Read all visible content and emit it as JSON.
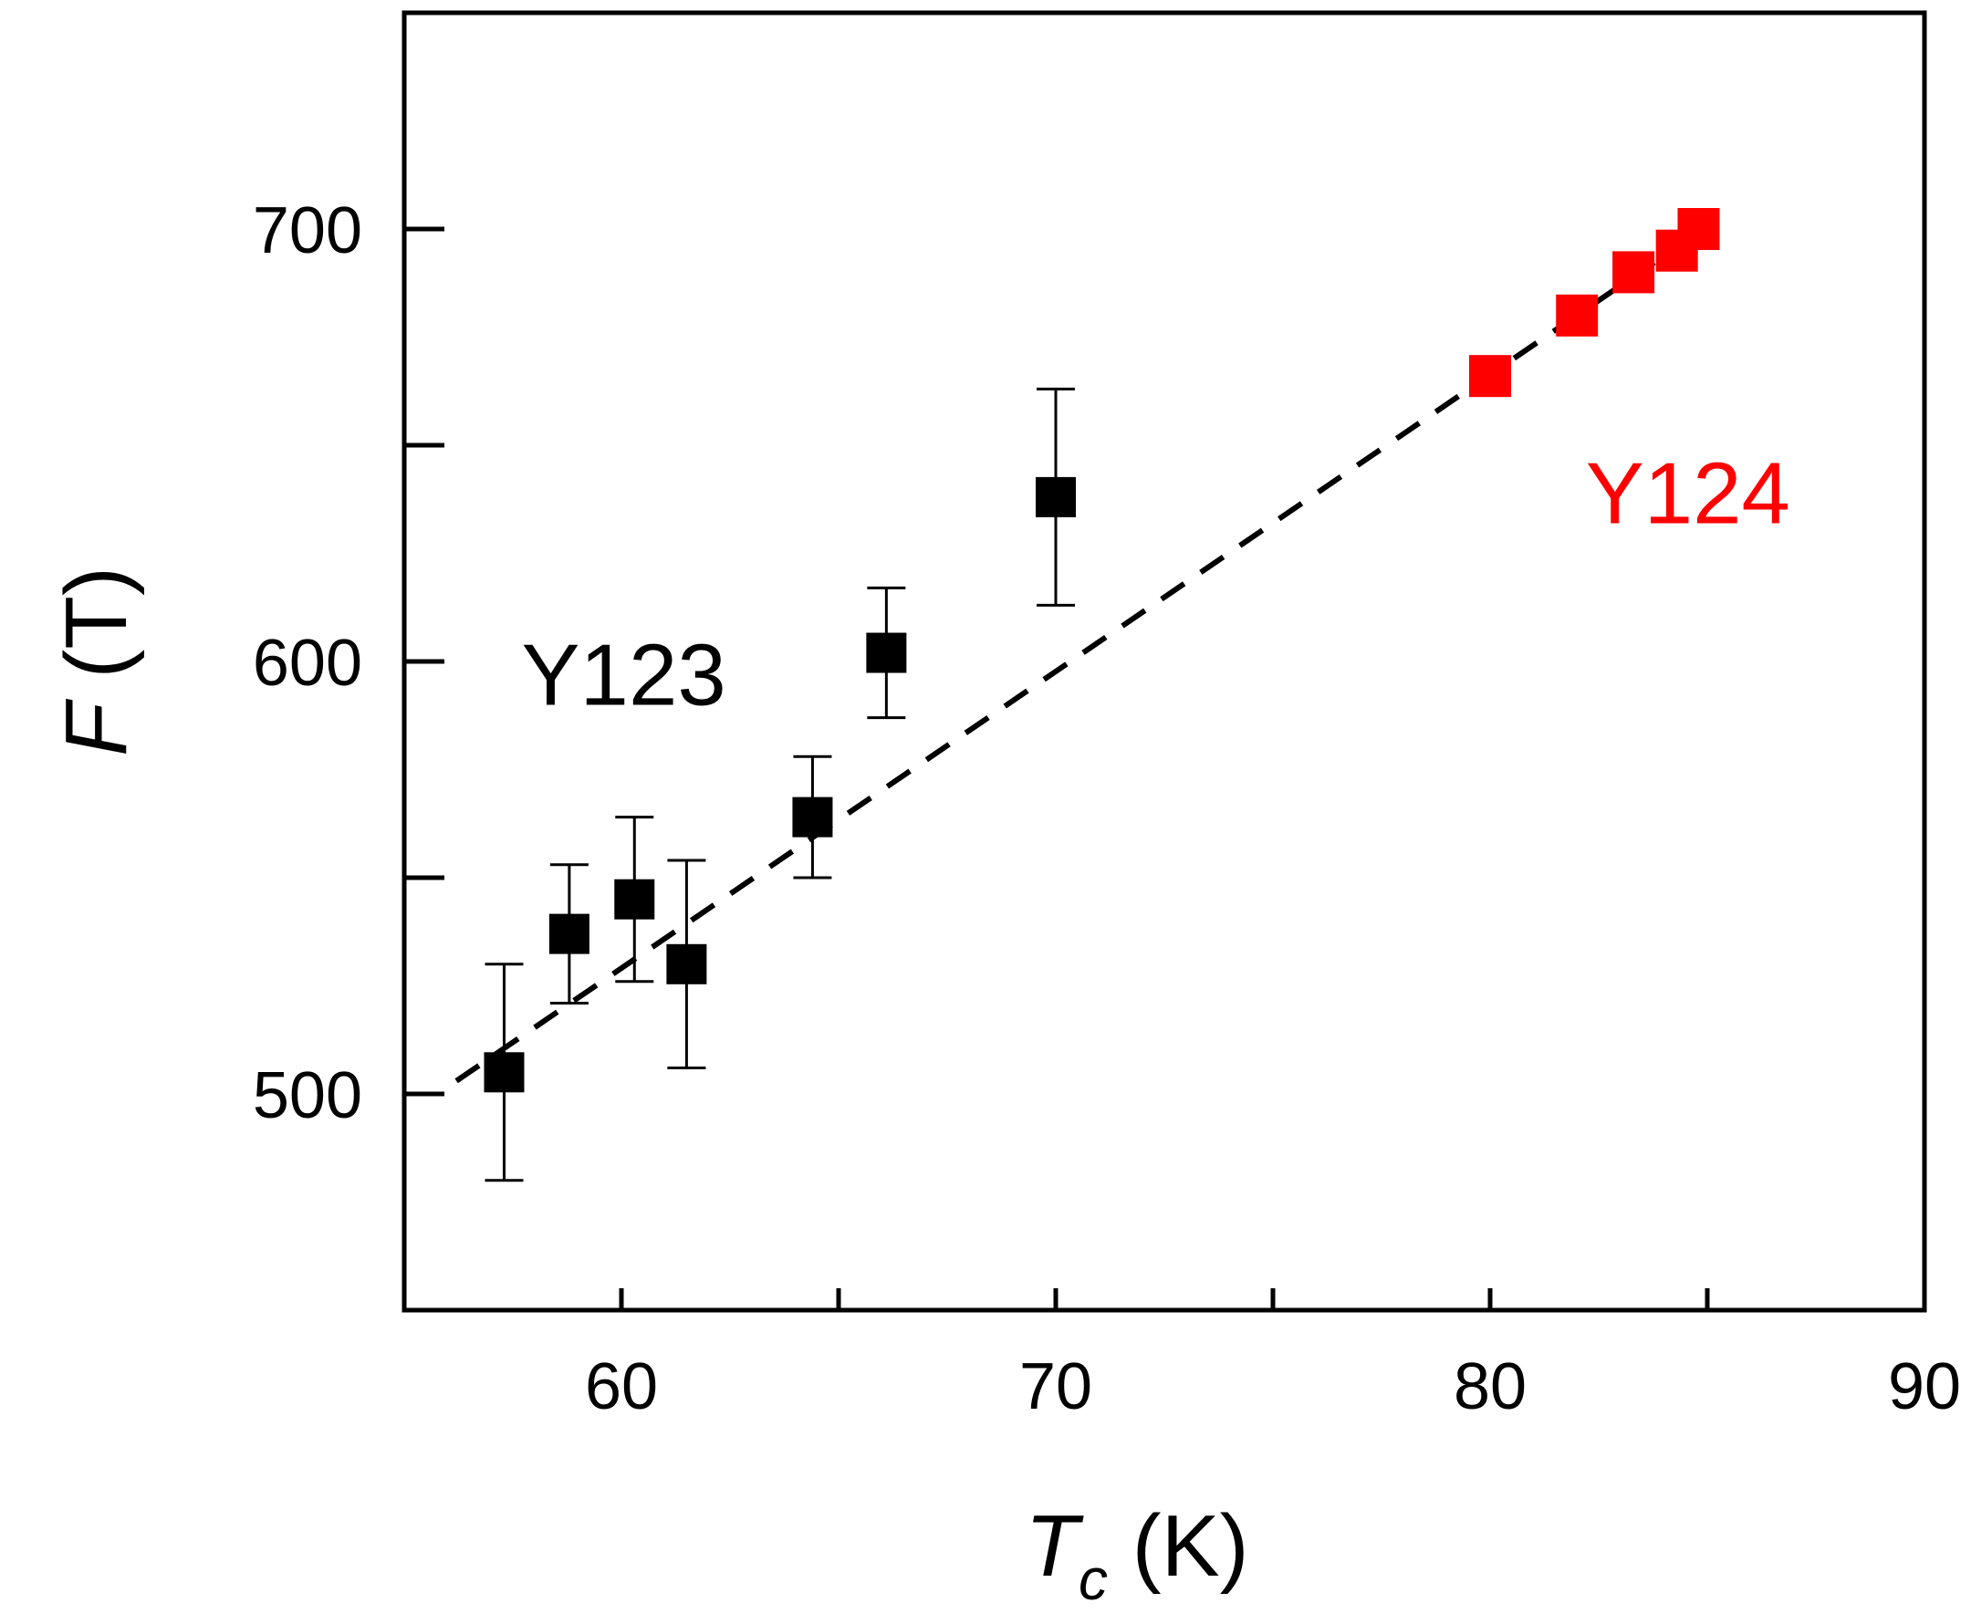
{
  "chart_data": {
    "type": "scatter",
    "title": "",
    "xlabel": {
      "symbol": "T",
      "subscript": "c",
      "unit": " (K)"
    },
    "ylabel": {
      "symbol": "F",
      "unit": " (T)"
    },
    "xlim": [
      55,
      90
    ],
    "ylim": [
      450,
      750
    ],
    "x_ticks": [
      60,
      65,
      70,
      75,
      80,
      85,
      90
    ],
    "x_tick_labels": [
      {
        "value": 60,
        "label": "60"
      },
      {
        "value": 70,
        "label": "70"
      },
      {
        "value": 80,
        "label": "80"
      },
      {
        "value": 90,
        "label": "90"
      }
    ],
    "y_ticks": [
      500,
      550,
      600,
      650,
      700
    ],
    "y_tick_labels": [
      {
        "value": 500,
        "label": "500"
      },
      {
        "value": 600,
        "label": "600"
      },
      {
        "value": 700,
        "label": "700"
      }
    ],
    "grid": false,
    "series": [
      {
        "name": "Y123",
        "color": "#000000",
        "marker": "square",
        "points": [
          {
            "x": 57.3,
            "y": 505,
            "err": 25
          },
          {
            "x": 58.8,
            "y": 537,
            "err": 16
          },
          {
            "x": 60.3,
            "y": 545,
            "err": 19
          },
          {
            "x": 61.5,
            "y": 530,
            "err": 24
          },
          {
            "x": 64.4,
            "y": 564,
            "err": 14
          },
          {
            "x": 66.1,
            "y": 602,
            "err": 15
          },
          {
            "x": 70.0,
            "y": 638,
            "err": 25
          }
        ]
      },
      {
        "name": "Y124",
        "color": "#ff0000",
        "marker": "square",
        "points": [
          {
            "x": 80.0,
            "y": 666
          },
          {
            "x": 82.0,
            "y": 680
          },
          {
            "x": 83.3,
            "y": 690
          },
          {
            "x": 84.3,
            "y": 695
          },
          {
            "x": 84.8,
            "y": 700
          }
        ]
      }
    ],
    "fit_line": {
      "style": "dashed",
      "color": "#000000",
      "from": {
        "x": 56.2,
        "y": 503
      },
      "to": {
        "x": 85.2,
        "y": 702
      }
    },
    "annotations": [
      {
        "text": "Y123",
        "color": "#000000",
        "x": 57.7,
        "y": 590
      },
      {
        "text": "Y124",
        "color": "#ff0000",
        "x": 82.2,
        "y": 632
      }
    ]
  }
}
